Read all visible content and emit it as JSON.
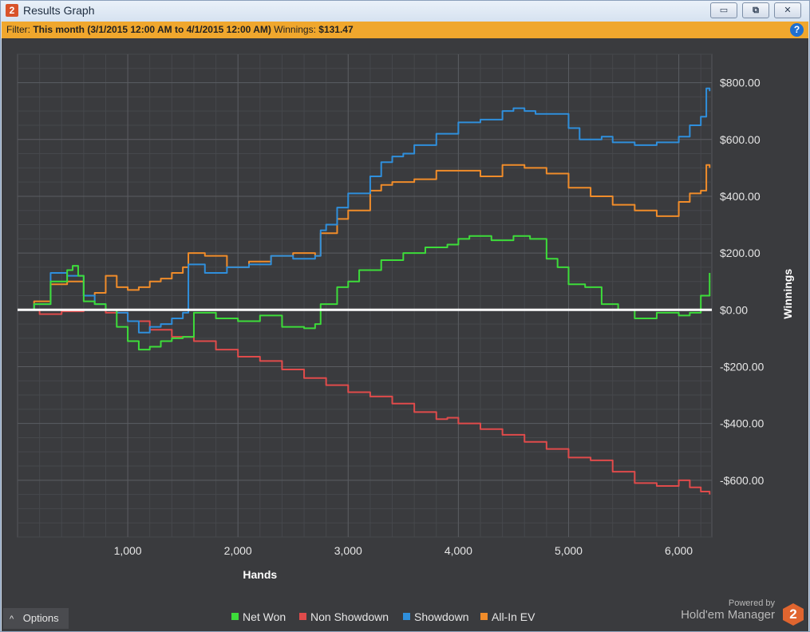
{
  "window": {
    "title": "Results Graph",
    "app_icon_label": "2",
    "buttons": {
      "minimize": "▭",
      "maximize": "⧉",
      "close": "✕"
    }
  },
  "filter": {
    "label": "Filter:",
    "value": "This month (3/1/2015 12:00 AM to 4/1/2015 12:00 AM)",
    "winnings_label": "Winnings:",
    "winnings_value": "$131.47",
    "help_icon": "?"
  },
  "options": {
    "label": "Options",
    "icon": "^"
  },
  "brand": {
    "powered_by": "Powered by",
    "name": "Hold'em Manager",
    "logo_text": "2"
  },
  "colors": {
    "background": "#3a3b3e",
    "net_won": "#3ddc3a",
    "non_showdown": "#e04b4b",
    "showdown": "#2f8fdc",
    "all_in_ev": "#f08c2a",
    "zero_line": "#ffffff"
  },
  "chart_data": {
    "type": "line",
    "xlabel": "Hands",
    "ylabel": "Winnings",
    "xlim": [
      0,
      6300
    ],
    "ylim": [
      -800,
      900
    ],
    "x_ticks": [
      1000,
      2000,
      3000,
      4000,
      5000,
      6000
    ],
    "x_tick_labels": [
      "1,000",
      "2,000",
      "3,000",
      "4,000",
      "5,000",
      "6,000"
    ],
    "y_ticks": [
      800,
      600,
      400,
      200,
      0,
      -200,
      -400,
      -600
    ],
    "y_tick_labels": [
      "$800.00",
      "$600.00",
      "$400.00",
      "$200.00",
      "$0.00",
      "-$200.00",
      "-$400.00",
      "-$600.00"
    ],
    "grid": true,
    "legend_position": "bottom",
    "series": [
      {
        "name": "Net Won",
        "color": "#3ddc3a",
        "x": [
          0,
          150,
          300,
          450,
          500,
          550,
          600,
          700,
          800,
          900,
          1000,
          1100,
          1200,
          1300,
          1400,
          1500,
          1600,
          1800,
          2000,
          2200,
          2400,
          2600,
          2700,
          2750,
          2900,
          3000,
          3100,
          3300,
          3500,
          3700,
          3900,
          4000,
          4100,
          4300,
          4500,
          4650,
          4800,
          4900,
          5000,
          5150,
          5300,
          5450,
          5600,
          5800,
          6000,
          6100,
          6200,
          6280
        ],
        "y": [
          0,
          20,
          100,
          140,
          155,
          120,
          30,
          20,
          0,
          -60,
          -110,
          -140,
          -130,
          -110,
          -100,
          -95,
          -10,
          -30,
          -40,
          -20,
          -60,
          -65,
          -50,
          20,
          80,
          100,
          140,
          175,
          200,
          220,
          230,
          250,
          260,
          245,
          260,
          250,
          180,
          150,
          90,
          80,
          20,
          0,
          -30,
          -10,
          -20,
          -10,
          50,
          130
        ]
      },
      {
        "name": "Non Showdown",
        "color": "#e04b4b",
        "x": [
          0,
          200,
          400,
          600,
          800,
          1000,
          1200,
          1400,
          1600,
          1800,
          2000,
          2200,
          2400,
          2600,
          2800,
          3000,
          3200,
          3400,
          3600,
          3800,
          3900,
          4000,
          4200,
          4400,
          4600,
          4800,
          5000,
          5200,
          5400,
          5600,
          5800,
          6000,
          6100,
          6200,
          6280
        ],
        "y": [
          0,
          -15,
          -5,
          0,
          -10,
          -40,
          -70,
          -95,
          -110,
          -140,
          -165,
          -180,
          -210,
          -240,
          -265,
          -290,
          -305,
          -330,
          -360,
          -385,
          -380,
          -400,
          -420,
          -440,
          -465,
          -490,
          -520,
          -530,
          -570,
          -610,
          -620,
          -600,
          -625,
          -640,
          -650
        ]
      },
      {
        "name": "Showdown",
        "color": "#2f8fdc",
        "x": [
          0,
          150,
          300,
          450,
          600,
          700,
          800,
          900,
          1000,
          1100,
          1200,
          1300,
          1400,
          1500,
          1550,
          1700,
          1900,
          2100,
          2300,
          2500,
          2700,
          2750,
          2800,
          2900,
          3000,
          3200,
          3300,
          3400,
          3500,
          3600,
          3800,
          4000,
          4200,
          4400,
          4500,
          4600,
          4700,
          5000,
          5100,
          5300,
          5400,
          5600,
          5800,
          6000,
          6100,
          6200,
          6250,
          6280
        ],
        "y": [
          0,
          20,
          130,
          120,
          50,
          20,
          0,
          -10,
          -40,
          -80,
          -60,
          -50,
          -30,
          -10,
          160,
          130,
          150,
          160,
          190,
          180,
          190,
          280,
          300,
          360,
          410,
          470,
          520,
          540,
          550,
          580,
          620,
          660,
          670,
          700,
          710,
          700,
          690,
          640,
          600,
          610,
          590,
          580,
          590,
          610,
          650,
          680,
          780,
          770
        ]
      },
      {
        "name": "All-In EV",
        "color": "#f08c2a",
        "x": [
          0,
          150,
          300,
          450,
          600,
          700,
          800,
          900,
          1000,
          1100,
          1200,
          1300,
          1400,
          1500,
          1550,
          1700,
          1900,
          2100,
          2300,
          2500,
          2700,
          2750,
          2900,
          3000,
          3200,
          3300,
          3400,
          3600,
          3800,
          4000,
          4200,
          4400,
          4600,
          4800,
          5000,
          5200,
          5400,
          5600,
          5800,
          6000,
          6100,
          6200,
          6250,
          6280
        ],
        "y": [
          0,
          30,
          90,
          100,
          50,
          60,
          120,
          80,
          70,
          80,
          100,
          110,
          130,
          150,
          200,
          190,
          150,
          170,
          190,
          200,
          190,
          270,
          320,
          350,
          420,
          440,
          450,
          460,
          490,
          490,
          470,
          510,
          500,
          480,
          430,
          400,
          370,
          350,
          330,
          380,
          410,
          420,
          510,
          500
        ]
      }
    ]
  }
}
